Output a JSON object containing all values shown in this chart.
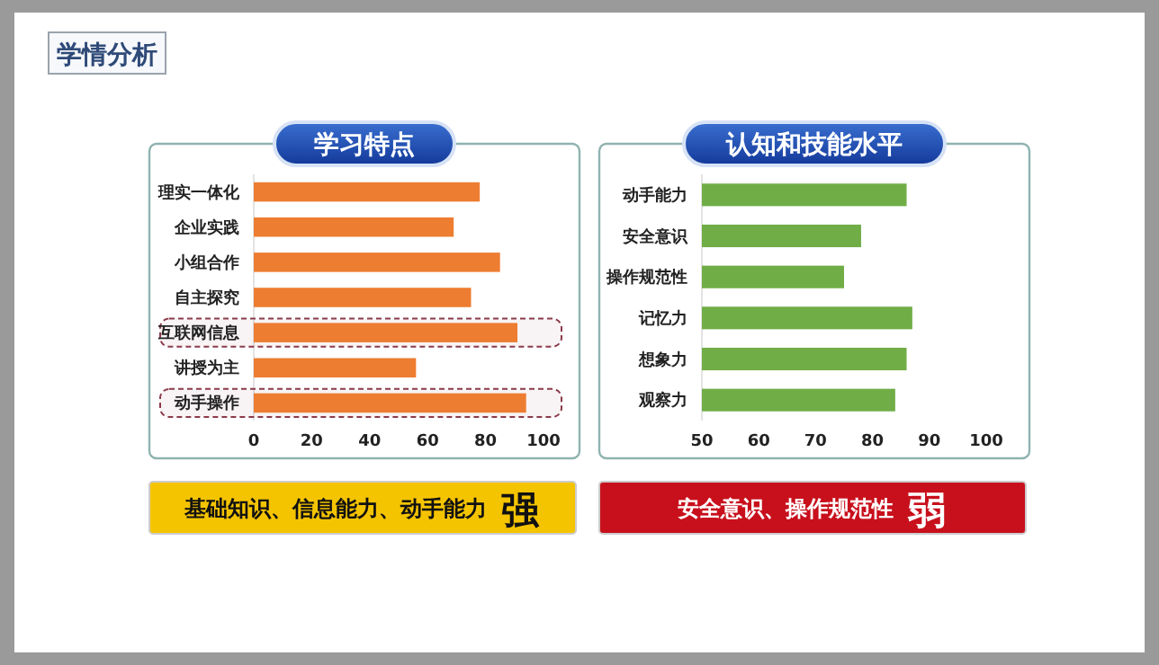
{
  "chart_data": [
    {
      "type": "other",
      "title": "学情分析"
    },
    {
      "type": "bar",
      "orientation": "horizontal",
      "title": "学习特点",
      "categories": [
        "理实一体化",
        "企业实践",
        "小组合作",
        "自主探究",
        "互联网信息",
        "讲授为主",
        "动手操作"
      ],
      "series": [
        {
          "color": "#ed7d31",
          "values": [
            78,
            69,
            85,
            75,
            91,
            56,
            94
          ]
        }
      ],
      "xlim": [
        0,
        100
      ],
      "xticks": [
        0,
        20,
        40,
        60,
        80,
        100
      ],
      "grid": false,
      "bands": [
        {
          "axis": "y",
          "from": "互联网信息",
          "to": "互联网信息",
          "color": "#8b3a4a"
        },
        {
          "axis": "y",
          "from": "动手操作",
          "to": "动手操作",
          "color": "#8b3a4a"
        }
      ],
      "annotations": [
        "基础知识、信息能力、动手能力",
        "强"
      ]
    },
    {
      "type": "bar",
      "orientation": "horizontal",
      "title": "认知和技能水平",
      "categories": [
        "动手能力",
        "安全意识",
        "操作规范性",
        "记忆力",
        "想象力",
        "观察力"
      ],
      "series": [
        {
          "color": "#70ad47",
          "values": [
            86,
            78,
            75,
            87,
            86,
            84
          ]
        }
      ],
      "xlim": [
        50,
        100
      ],
      "xticks": [
        50,
        60,
        70,
        80,
        90,
        100
      ],
      "grid": false,
      "annotations": [
        "安全意识、操作规范性",
        "弱"
      ]
    }
  ]
}
